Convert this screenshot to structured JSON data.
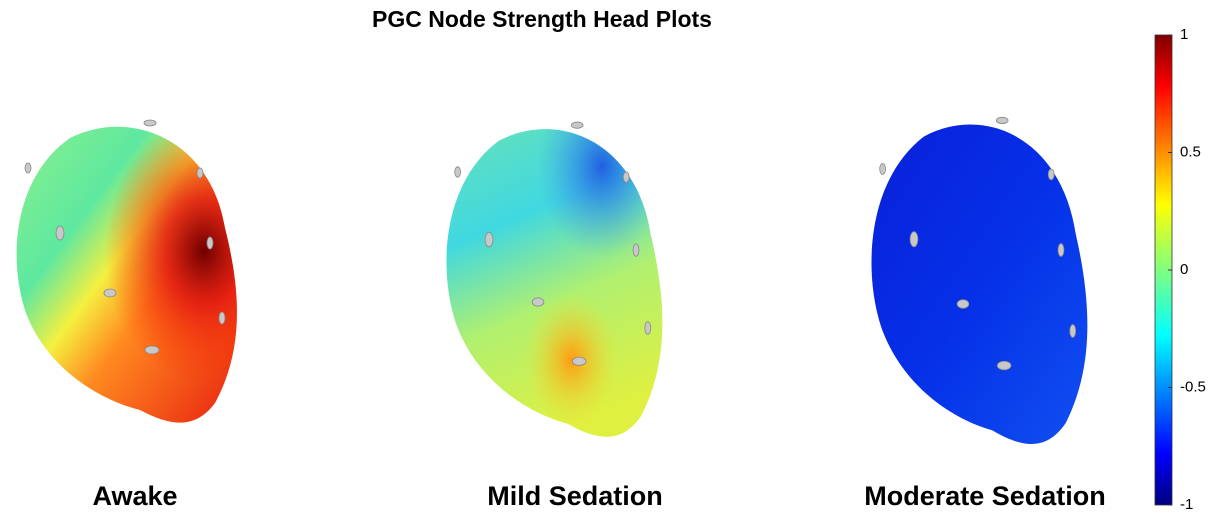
{
  "title": "PGC Node Strength Head Plots",
  "panels": [
    {
      "label": "Awake"
    },
    {
      "label": "Mild Sedation"
    },
    {
      "label": "Moderate Sedation"
    }
  ],
  "colorbar": {
    "lim": [
      -1,
      1
    ],
    "ticks": [
      1,
      0.5,
      0,
      -0.5,
      -1
    ]
  }
}
